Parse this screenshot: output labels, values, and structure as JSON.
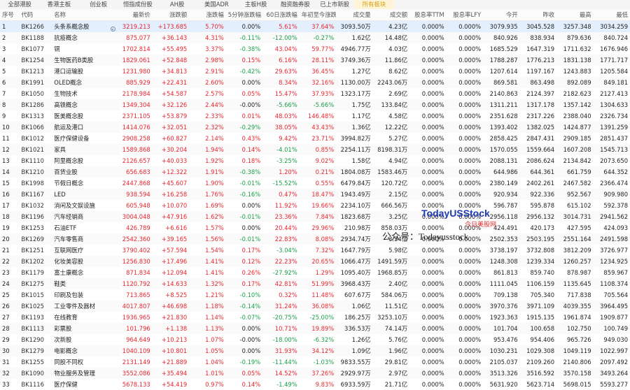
{
  "tabs": [
    "全部港股",
    "香港主板",
    "创业板",
    "恒指成份股",
    "AH股",
    "美国ADR",
    "主板H股",
    "融资融券股",
    "已上市新股",
    "所有板块"
  ],
  "active_tab_index": 9,
  "columns": [
    "序号",
    "代码",
    "名称",
    "",
    "最新价",
    "涨跌额",
    "涨跌幅",
    "5分钟涨跌幅",
    "60日涨跌幅",
    "年初至今涨跌",
    "成交量",
    "成交额",
    "股息率TTM",
    "股息率LFY",
    "今开",
    "昨收",
    "最高",
    "最低"
  ],
  "rows": [
    [
      "1",
      "BK1266",
      "头条系概念股",
      "3219.213",
      "+173.685",
      "5.70%",
      "0.00%",
      "5.61%",
      "37.64%",
      "3093.50万",
      "4.23亿",
      "0.000%",
      "0.000%",
      "3079.935",
      "3045.528",
      "3257.348",
      "3034.259"
    ],
    [
      "2",
      "BK1188",
      "抗疫概念",
      "875.077",
      "+36.143",
      "4.31%",
      "-0.11%",
      "-12.00%",
      "-0.27%",
      "1.62亿",
      "14.48亿",
      "0.000%",
      "0.000%",
      "840.926",
      "838.934",
      "879.636",
      "840.724"
    ],
    [
      "3",
      "BK1077",
      "铜",
      "1702.814",
      "+55.495",
      "3.37%",
      "-0.38%",
      "43.04%",
      "59.77%",
      "4946.77万",
      "4.03亿",
      "0.000%",
      "0.000%",
      "1685.529",
      "1647.319",
      "1711.632",
      "1676.946"
    ],
    [
      "4",
      "BK1254",
      "生物医药B类股",
      "1829.061",
      "+52.848",
      "2.98%",
      "0.15%",
      "6.16%",
      "28.11%",
      "3749.36万",
      "11.86亿",
      "0.000%",
      "0.000%",
      "1788.287",
      "1776.213",
      "1831.138",
      "1771.717"
    ],
    [
      "5",
      "BK1213",
      "港口运输股",
      "1231.980",
      "+34.813",
      "2.91%",
      "-0.42%",
      "29.63%",
      "36.45%",
      "1.27亿",
      "8.62亿",
      "0.000%",
      "0.000%",
      "1207.614",
      "1197.167",
      "1243.883",
      "1205.584"
    ],
    [
      "6",
      "BK1991",
      "OLED概念",
      "885.929",
      "+22.431",
      "2.60%",
      "0.00%",
      "8.34%",
      "32.16%",
      "1130.00万",
      "2243.06万",
      "0.000%",
      "0.000%",
      "869.581",
      "863.498",
      "892.089",
      "849.181"
    ],
    [
      "7",
      "BK1050",
      "生物技术",
      "2178.984",
      "+54.587",
      "2.57%",
      "0.05%",
      "15.47%",
      "37.93%",
      "1323.17万",
      "2.69亿",
      "0.000%",
      "0.000%",
      "2140.863",
      "2124.397",
      "2182.623",
      "2127.413"
    ],
    [
      "8",
      "BK1286",
      "高铁概念",
      "1349.304",
      "+32.126",
      "2.44%",
      "-0.00%",
      "-5.66%",
      "-5.66%",
      "1.75亿",
      "133.84亿",
      "0.000%",
      "0.000%",
      "1311.211",
      "1317.178",
      "1357.142",
      "1304.633"
    ],
    [
      "9",
      "BK1313",
      "医美概念股",
      "2371.105",
      "+53.879",
      "2.33%",
      "0.01%",
      "48.03%",
      "146.48%",
      "1.17亿",
      "4.58亿",
      "0.000%",
      "0.000%",
      "2351.628",
      "2317.226",
      "2388.040",
      "2326.734"
    ],
    [
      "10",
      "BK1066",
      "航运及港口",
      "1414.076",
      "+32.051",
      "2.32%",
      "-0.29%",
      "38.05%",
      "43.43%",
      "1.36亿",
      "12.22亿",
      "0.000%",
      "0.000%",
      "1393.402",
      "1382.025",
      "1424.877",
      "1391.259"
    ],
    [
      "11",
      "BK1012",
      "医疗保健设备",
      "2908.258",
      "+60.827",
      "2.14%",
      "0.43%",
      "9.42%",
      "23.71%",
      "3994.82万",
      "5.27亿",
      "0.000%",
      "0.000%",
      "2858.425",
      "2847.431",
      "2909.185",
      "2851.437"
    ],
    [
      "12",
      "BK1021",
      "家具",
      "1589.868",
      "+30.204",
      "1.94%",
      "0.14%",
      "-4.01%",
      "0.85%",
      "2254.11万",
      "8198.31万",
      "0.000%",
      "0.000%",
      "1570.055",
      "1559.664",
      "1607.208",
      "1545.713"
    ],
    [
      "13",
      "BK1110",
      "阿里概念股",
      "2126.657",
      "+40.033",
      "1.92%",
      "0.18%",
      "-3.25%",
      "9.02%",
      "1.58亿",
      "4.94亿",
      "0.000%",
      "0.000%",
      "2088.131",
      "2086.624",
      "2134.842",
      "2073.650"
    ],
    [
      "14",
      "BK1210",
      "百货业股",
      "656.683",
      "+12.322",
      "1.91%",
      "-0.38%",
      "1.20%",
      "0.21%",
      "1804.08万",
      "1583.46万",
      "0.000%",
      "0.000%",
      "644.986",
      "644.361",
      "661.759",
      "644.352"
    ],
    [
      "15",
      "BK1998",
      "节假日概念",
      "2447.868",
      "+45.607",
      "1.90%",
      "-0.01%",
      "-15.52%",
      "0.55%",
      "6479.84万",
      "120.72亿",
      "0.000%",
      "0.000%",
      "2380.149",
      "2402.261",
      "2467.582",
      "2366.474"
    ],
    [
      "16",
      "BK1167",
      "LED",
      "938.594",
      "+16.258",
      "1.76%",
      "-0.16%",
      "0.47%",
      "18.47%",
      "1943.49万",
      "2.15亿",
      "0.000%",
      "0.000%",
      "920.934",
      "922.336",
      "952.567",
      "909.980"
    ],
    [
      "17",
      "BK1032",
      "消闲及文娱设施",
      "605.948",
      "+10.070",
      "1.69%",
      "0.00%",
      "11.92%",
      "19.66%",
      "2234.10万",
      "666.56万",
      "0.000%",
      "0.000%",
      "596.787",
      "595.878",
      "615.102",
      "592.378"
    ],
    [
      "18",
      "BK1196",
      "汽车经销商",
      "3004.048",
      "+47.916",
      "1.62%",
      "-0.01%",
      "23.36%",
      "7.84%",
      "1823.68万",
      "3.25亿",
      "0.000%",
      "0.000%",
      "2956.118",
      "2956.132",
      "3014.731",
      "2941.562"
    ],
    [
      "19",
      "BK1253",
      "石油ETF",
      "426.789",
      "+6.616",
      "1.57%",
      "0.00%",
      "20.44%",
      "29.96%",
      "210.98万",
      "858.03万",
      "0.000%",
      "0.000%",
      "424.491",
      "420.173",
      "427.595",
      "424.093"
    ],
    [
      "20",
      "BK1269",
      "汽车零售商",
      "2542.360",
      "+39.165",
      "1.56%",
      "-0.01%",
      "22.83%",
      "8.08%",
      "2934.74万",
      "3.34亿",
      "0.000%",
      "0.000%",
      "2502.353",
      "2503.195",
      "2551.164",
      "2491.598"
    ],
    [
      "21",
      "BK1251",
      "互联网医疗",
      "3790.402",
      "+57.594",
      "1.54%",
      "0.17%",
      "-3.04%",
      "7.32%",
      "1647.79万",
      "5.98亿",
      "0.000%",
      "0.000%",
      "3738.197",
      "3732.808",
      "3812.209",
      "3726.977"
    ],
    [
      "22",
      "BK1202",
      "化妆美容股",
      "1256.830",
      "+17.496",
      "1.41%",
      "0.12%",
      "22.23%",
      "20.65%",
      "1066.47万",
      "1491.59万",
      "0.000%",
      "0.000%",
      "1248.308",
      "1239.334",
      "1260.257",
      "1234.925"
    ],
    [
      "23",
      "BK1179",
      "富士康概念",
      "871.834",
      "+12.094",
      "1.41%",
      "0.26%",
      "-27.92%",
      "1.29%",
      "1095.40万",
      "1968.85万",
      "0.000%",
      "0.000%",
      "861.813",
      "859.740",
      "878.987",
      "859.967"
    ],
    [
      "24",
      "BK1275",
      "鞋类",
      "1120.792",
      "+14.633",
      "1.32%",
      "0.17%",
      "42.81%",
      "51.99%",
      "3968.43万",
      "2.40亿",
      "0.000%",
      "0.000%",
      "1111.045",
      "1106.159",
      "1135.645",
      "1108.374"
    ],
    [
      "25",
      "BK1015",
      "印刷及包装",
      "713.865",
      "+8.525",
      "1.21%",
      "-0.10%",
      "0.32%",
      "11.48%",
      "607.67万",
      "584.06万",
      "0.000%",
      "0.000%",
      "709.138",
      "705.340",
      "717.838",
      "705.564"
    ],
    [
      "26",
      "BK1025",
      "工业零件及器材",
      "4017.807",
      "+46.698",
      "1.18%",
      "-0.14%",
      "31.24%",
      "36.08%",
      "1.06亿",
      "11.51亿",
      "0.000%",
      "0.000%",
      "3970.376",
      "3971.109",
      "4039.355",
      "3964.495"
    ],
    [
      "27",
      "BK1193",
      "在线教育",
      "1936.965",
      "+21.830",
      "1.14%",
      "-0.07%",
      "-20.75%",
      "-25.00%",
      "186.25万",
      "3253.10万",
      "0.000%",
      "0.000%",
      "1923.363",
      "1915.135",
      "1961.874",
      "1909.877"
    ],
    [
      "28",
      "BK1113",
      "彩票股",
      "101.796",
      "+1.138",
      "1.13%",
      "0.00%",
      "10.71%",
      "19.89%",
      "336.53万",
      "74.14万",
      "0.000%",
      "0.000%",
      "101.704",
      "100.658",
      "102.750",
      "100.749"
    ],
    [
      "29",
      "BK1290",
      "次新股",
      "964.649",
      "+10.213",
      "1.07%",
      "-0.00%",
      "-18.00%",
      "-6.32%",
      "1.26亿",
      "5.76亿",
      "0.000%",
      "0.000%",
      "953.476",
      "954.406",
      "965.726",
      "949.030"
    ],
    [
      "30",
      "BK1279",
      "电影概念",
      "1040.109",
      "+10.801",
      "1.05%",
      "0.00%",
      "31.93%",
      "34.12%",
      "1.09亿",
      "1.96亿",
      "0.000%",
      "0.000%",
      "1030.231",
      "1029.308",
      "1049.119",
      "1022.997"
    ],
    [
      "31",
      "BK1255",
      "同股不同权",
      "2131.149",
      "+21.889",
      "1.04%",
      "-0.19%",
      "-11.44%",
      "-1.03%",
      "9833.55万",
      "29.81亿",
      "0.000%",
      "0.000%",
      "2105.037",
      "2109.260",
      "2140.806",
      "2097.492"
    ],
    [
      "32",
      "BK1090",
      "物业服务及管理",
      "3552.086",
      "+35.494",
      "1.01%",
      "0.05%",
      "14.52%",
      "37.26%",
      "2929.97万",
      "2.97亿",
      "0.000%",
      "0.000%",
      "3513.326",
      "3516.592",
      "3570.158",
      "3493.264"
    ],
    [
      "33",
      "BK1116",
      "医疗保健",
      "5678.133",
      "+54.419",
      "0.97%",
      "0.14%",
      "-1.49%",
      "9.83%",
      "6933.59万",
      "21.71亿",
      "0.000%",
      "0.000%",
      "5631.920",
      "5623.714",
      "5698.015",
      "5593.277"
    ]
  ],
  "watermark": {
    "logo": "TodayUSStock",
    "sub": "今日美股网",
    "text": "公众号：Todayusstock"
  },
  "colors": {
    "up": "#e6262f",
    "down": "#1b9e4b",
    "selected_row": "#e3effc",
    "active_tab": "#d4a017"
  }
}
